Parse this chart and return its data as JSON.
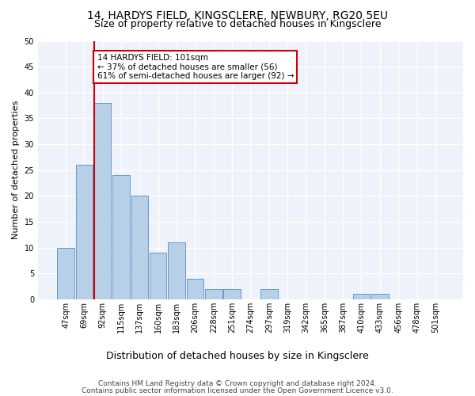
{
  "title1": "14, HARDYS FIELD, KINGSCLERE, NEWBURY, RG20 5EU",
  "title2": "Size of property relative to detached houses in Kingsclere",
  "xlabel": "Distribution of detached houses by size in Kingsclere",
  "ylabel": "Number of detached properties",
  "bin_labels": [
    "47sqm",
    "69sqm",
    "92sqm",
    "115sqm",
    "137sqm",
    "160sqm",
    "183sqm",
    "206sqm",
    "228sqm",
    "251sqm",
    "274sqm",
    "297sqm",
    "319sqm",
    "342sqm",
    "365sqm",
    "387sqm",
    "410sqm",
    "433sqm",
    "456sqm",
    "478sqm",
    "501sqm"
  ],
  "bar_values": [
    10,
    26,
    38,
    24,
    20,
    9,
    11,
    4,
    2,
    2,
    0,
    2,
    0,
    0,
    0,
    0,
    1,
    1,
    0,
    0,
    0
  ],
  "bar_color": "#b8cfe8",
  "bar_edge_color": "#6699cc",
  "ylim": [
    0,
    50
  ],
  "yticks": [
    0,
    5,
    10,
    15,
    20,
    25,
    30,
    35,
    40,
    45,
    50
  ],
  "property_line_bin": 2,
  "property_line_color": "#cc0000",
  "annotation_line1": "14 HARDYS FIELD: 101sqm",
  "annotation_line2": "← 37% of detached houses are smaller (56)",
  "annotation_line3": "61% of semi-detached houses are larger (92) →",
  "annotation_box_color": "#cc0000",
  "footer1": "Contains HM Land Registry data © Crown copyright and database right 2024.",
  "footer2": "Contains public sector information licensed under the Open Government Licence v3.0.",
  "background_color": "#eef2fa",
  "grid_color": "#ffffff",
  "title1_fontsize": 10,
  "title2_fontsize": 9,
  "xlabel_fontsize": 9,
  "ylabel_fontsize": 8,
  "tick_fontsize": 7,
  "annotation_fontsize": 7.5,
  "footer_fontsize": 6.5
}
